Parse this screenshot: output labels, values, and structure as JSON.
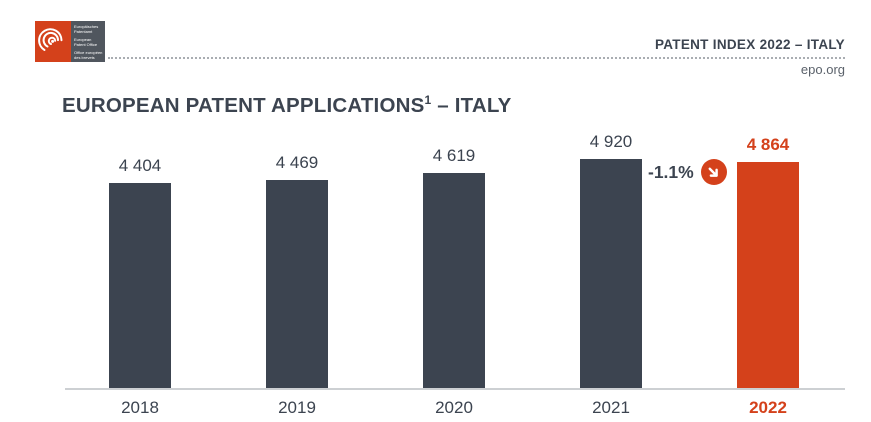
{
  "header": {
    "logo": {
      "lines": [
        "Europäisches Patentamt",
        "European Patent Office",
        "Office européen des brevets"
      ]
    },
    "publication": "PATENT INDEX 2022 – ITALY",
    "website": "epo.org"
  },
  "title": {
    "main": "EUROPEAN PATENT APPLICATIONS",
    "superscript": "1",
    "suffix": " – ITALY"
  },
  "colors": {
    "bar": "#3C4450",
    "highlight": "#D4411B",
    "text": "#3C4450",
    "axis_line": "#CDD0D3"
  },
  "chart_data": {
    "type": "bar",
    "title": "EUROPEAN PATENT APPLICATIONS – ITALY",
    "categories": [
      "2018",
      "2019",
      "2020",
      "2021",
      "2022"
    ],
    "values": [
      4404,
      4469,
      4619,
      4920,
      4864
    ],
    "value_labels": [
      "4 404",
      "4 469",
      "4 619",
      "4 920",
      "4 864"
    ],
    "highlight_index": 4,
    "annotation": {
      "label": "-1.1%",
      "icon": "arrow-down-right"
    },
    "xlabel": "",
    "ylabel": "",
    "ylim": [
      0,
      5200
    ],
    "grid": false,
    "legend": false
  }
}
